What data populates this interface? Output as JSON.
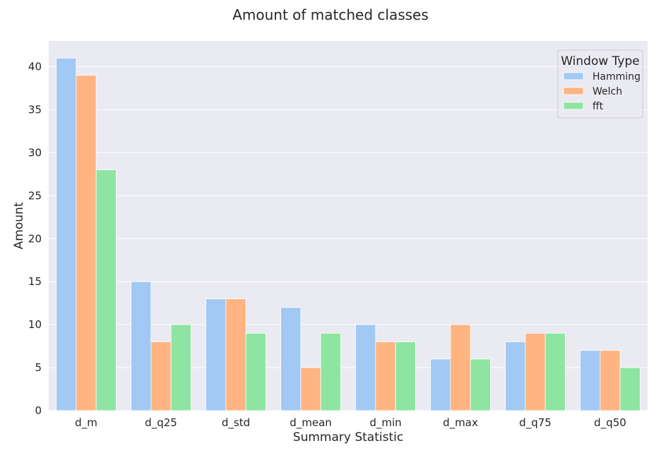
{
  "chart_data": {
    "type": "bar",
    "title": "Amount of matched classes",
    "xlabel": "Summary Statistic",
    "ylabel": "Amount",
    "categories": [
      "d_m",
      "d_q25",
      "d_std",
      "d_mean",
      "d_min",
      "d_max",
      "d_q75",
      "d_q50"
    ],
    "series": [
      {
        "name": "Hamming",
        "color": "#a1c9f4",
        "values": [
          41,
          15,
          13,
          12,
          10,
          6,
          8,
          7
        ]
      },
      {
        "name": "Welch",
        "color": "#ffb482",
        "values": [
          39,
          8,
          13,
          5,
          8,
          10,
          9,
          7
        ]
      },
      {
        "name": "fft",
        "color": "#8de5a1",
        "values": [
          28,
          10,
          9,
          9,
          8,
          6,
          9,
          5
        ]
      }
    ],
    "ylim": [
      0,
      43
    ],
    "yticks": [
      0,
      5,
      10,
      15,
      20,
      25,
      30,
      35,
      40
    ],
    "grid": true,
    "legend": {
      "title": "Window Type",
      "placement": "top-right"
    },
    "background_color": "#eaeaf2",
    "grid_color": "#ffffff"
  }
}
